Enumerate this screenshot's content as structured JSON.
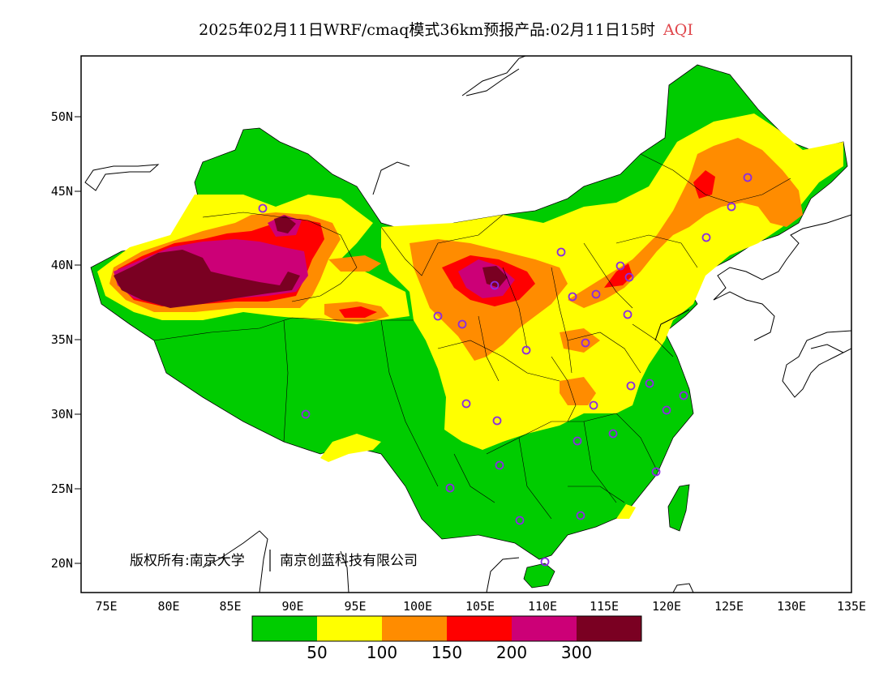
{
  "title": {
    "main": "2025年02月11日WRF/cmaq模式36km预报产品:02月11日15时",
    "variable": "AQI"
  },
  "axes": {
    "lat_labels": [
      "50N",
      "45N",
      "40N",
      "35N",
      "30N",
      "25N",
      "20N"
    ],
    "lon_labels": [
      "75E",
      "80E",
      "85E",
      "90E",
      "95E",
      "100E",
      "105E",
      "110E",
      "115E",
      "120E",
      "125E",
      "130E",
      "135E"
    ]
  },
  "copyright": {
    "owner1": "版权所有:南京大学",
    "owner2": "南京创蓝科技有限公司"
  },
  "legend": {
    "colors": [
      "#00cc00",
      "#ffff00",
      "#ff8c00",
      "#ff0000",
      "#cc0077",
      "#7a0022"
    ],
    "labels": [
      "50",
      "100",
      "150",
      "200",
      "300"
    ]
  },
  "colors": {
    "land_background": "#ffffff",
    "boundary": "#000000",
    "station_marker": "#8a2be2"
  }
}
